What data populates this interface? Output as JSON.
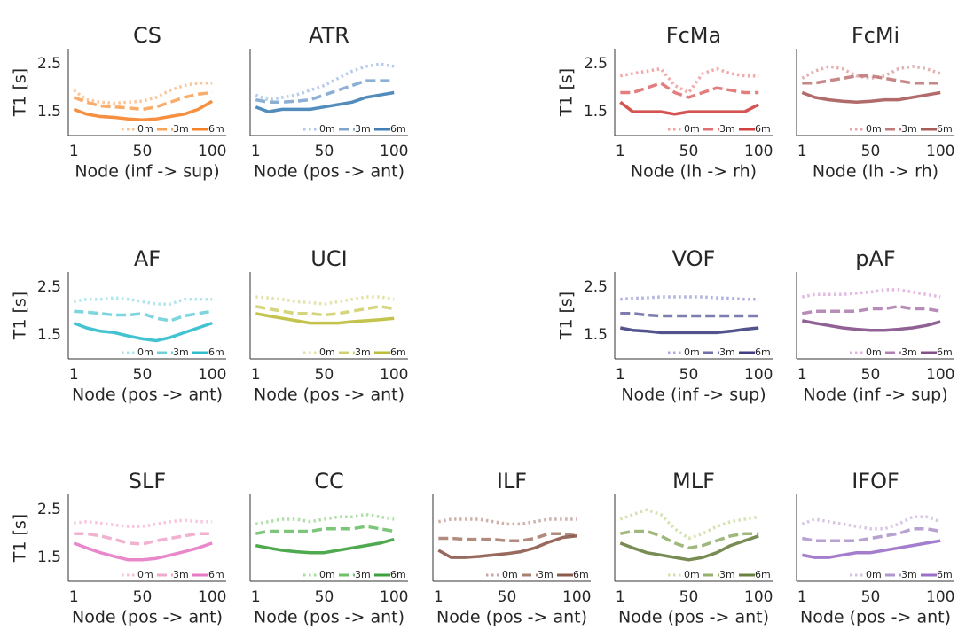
{
  "chart_data": [
    {
      "type": "line",
      "title": "CS",
      "xlabel": "Node (inf -> sup)",
      "ylabel": "T1 [s]",
      "x": [
        1,
        10,
        20,
        30,
        40,
        50,
        60,
        70,
        80,
        90,
        100
      ],
      "xlim": [
        -3,
        110
      ],
      "ylim": [
        1.0,
        2.82
      ],
      "xticks": [
        1,
        50,
        100
      ],
      "yticks": [
        1.5,
        2.5
      ],
      "legend": "lower right",
      "series": [
        {
          "name": "0m",
          "color": "#fdbf8a",
          "linestyle": "dotted",
          "values": [
            1.95,
            1.75,
            1.7,
            1.68,
            1.7,
            1.72,
            1.8,
            1.95,
            2.05,
            2.1,
            2.1
          ]
        },
        {
          "name": "3m",
          "color": "#f9a35a",
          "linestyle": "dashed",
          "values": [
            1.8,
            1.7,
            1.62,
            1.6,
            1.58,
            1.55,
            1.6,
            1.7,
            1.8,
            1.87,
            1.9
          ]
        },
        {
          "name": "6m",
          "color": "#f5832a",
          "linestyle": "solid",
          "values": [
            1.55,
            1.45,
            1.4,
            1.38,
            1.35,
            1.33,
            1.35,
            1.4,
            1.45,
            1.55,
            1.72
          ]
        }
      ]
    },
    {
      "type": "line",
      "title": "ATR",
      "xlabel": "Node (pos -> ant)",
      "x": [
        1,
        10,
        20,
        30,
        40,
        50,
        60,
        70,
        80,
        90,
        100
      ],
      "xlim": [
        -3,
        110
      ],
      "ylim": [
        1.0,
        2.82
      ],
      "xticks": [
        1,
        50,
        100
      ],
      "legend": "lower right",
      "series": [
        {
          "name": "0m",
          "color": "#aec7e8",
          "linestyle": "dotted",
          "values": [
            1.85,
            1.75,
            1.8,
            1.85,
            1.95,
            2.05,
            2.2,
            2.35,
            2.45,
            2.5,
            2.45
          ]
        },
        {
          "name": "3m",
          "color": "#7fa6cf",
          "linestyle": "dashed",
          "values": [
            1.75,
            1.7,
            1.7,
            1.72,
            1.75,
            1.85,
            1.95,
            2.05,
            2.15,
            2.15,
            2.15
          ]
        },
        {
          "name": "6m",
          "color": "#3f7fb5",
          "linestyle": "solid",
          "values": [
            1.6,
            1.5,
            1.55,
            1.55,
            1.55,
            1.6,
            1.65,
            1.7,
            1.8,
            1.85,
            1.9
          ]
        }
      ]
    },
    {
      "type": "line",
      "title": "FcMa",
      "xlabel": "Node (lh -> rh)",
      "ylabel": "T1 [s]",
      "x": [
        1,
        10,
        20,
        30,
        40,
        50,
        60,
        70,
        80,
        90,
        100
      ],
      "xlim": [
        -3,
        110
      ],
      "ylim": [
        1.0,
        2.82
      ],
      "xticks": [
        1,
        50,
        100
      ],
      "yticks": [
        1.5,
        2.5
      ],
      "legend": "lower right",
      "series": [
        {
          "name": "0m",
          "color": "#f0a0a0",
          "linestyle": "dotted",
          "values": [
            2.25,
            2.3,
            2.35,
            2.4,
            2.05,
            1.9,
            2.3,
            2.4,
            2.3,
            2.25,
            2.25
          ]
        },
        {
          "name": "3m",
          "color": "#e07070",
          "linestyle": "dashed",
          "values": [
            1.9,
            1.9,
            2.0,
            2.1,
            1.9,
            1.8,
            1.9,
            2.0,
            1.95,
            1.9,
            1.9
          ]
        },
        {
          "name": "6m",
          "color": "#d0403f",
          "linestyle": "solid",
          "values": [
            1.7,
            1.5,
            1.5,
            1.5,
            1.45,
            1.5,
            1.5,
            1.5,
            1.5,
            1.5,
            1.65
          ]
        }
      ]
    },
    {
      "type": "line",
      "title": "FcMi",
      "xlabel": "Node (lh -> rh)",
      "x": [
        1,
        10,
        20,
        30,
        40,
        50,
        60,
        70,
        80,
        90,
        100
      ],
      "xlim": [
        -3,
        110
      ],
      "ylim": [
        1.0,
        2.82
      ],
      "xticks": [
        1,
        50,
        100
      ],
      "legend": "lower right",
      "series": [
        {
          "name": "0m",
          "color": "#e0a8a8",
          "linestyle": "dotted",
          "values": [
            2.2,
            2.35,
            2.45,
            2.4,
            2.25,
            2.2,
            2.25,
            2.4,
            2.45,
            2.4,
            2.3
          ]
        },
        {
          "name": "3m",
          "color": "#c07a7a",
          "linestyle": "dashed",
          "values": [
            2.1,
            2.1,
            2.15,
            2.2,
            2.25,
            2.25,
            2.2,
            2.15,
            2.1,
            2.1,
            2.1
          ]
        },
        {
          "name": "6m",
          "color": "#a85b5b",
          "linestyle": "solid",
          "values": [
            1.9,
            1.8,
            1.75,
            1.72,
            1.7,
            1.72,
            1.75,
            1.75,
            1.8,
            1.85,
            1.9
          ]
        }
      ]
    },
    {
      "type": "line",
      "title": "AF",
      "xlabel": "Node (pos -> ant)",
      "ylabel": "T1 [s]",
      "x": [
        1,
        10,
        20,
        30,
        40,
        50,
        60,
        70,
        80,
        90,
        100
      ],
      "xlim": [
        -3,
        110
      ],
      "ylim": [
        1.0,
        2.82
      ],
      "xticks": [
        1,
        50,
        100
      ],
      "yticks": [
        1.5,
        2.5
      ],
      "legend": "lower right",
      "series": [
        {
          "name": "0m",
          "color": "#a9e3ea",
          "linestyle": "dotted",
          "values": [
            2.2,
            2.25,
            2.25,
            2.28,
            2.25,
            2.2,
            2.15,
            2.15,
            2.25,
            2.25,
            2.25
          ]
        },
        {
          "name": "3m",
          "color": "#6fd0dc",
          "linestyle": "dashed",
          "values": [
            2.0,
            1.98,
            1.95,
            1.92,
            1.92,
            1.95,
            1.85,
            1.8,
            1.9,
            1.95,
            2.0
          ]
        },
        {
          "name": "6m",
          "color": "#2fbccc",
          "linestyle": "solid",
          "values": [
            1.75,
            1.65,
            1.58,
            1.55,
            1.48,
            1.42,
            1.38,
            1.45,
            1.55,
            1.65,
            1.75
          ]
        }
      ]
    },
    {
      "type": "line",
      "title": "UCI",
      "xlabel": "Node (pos -> ant)",
      "x": [
        1,
        10,
        20,
        30,
        40,
        50,
        60,
        70,
        80,
        90,
        100
      ],
      "xlim": [
        -3,
        110
      ],
      "ylim": [
        1.0,
        2.82
      ],
      "xticks": [
        1,
        50,
        100
      ],
      "legend": "lower right",
      "series": [
        {
          "name": "0m",
          "color": "#e0e0a0",
          "linestyle": "dotted",
          "values": [
            2.3,
            2.28,
            2.25,
            2.2,
            2.18,
            2.15,
            2.2,
            2.25,
            2.3,
            2.3,
            2.25
          ]
        },
        {
          "name": "3m",
          "color": "#d0d070",
          "linestyle": "dashed",
          "values": [
            2.1,
            2.05,
            2.0,
            1.95,
            1.95,
            1.92,
            1.95,
            2.0,
            2.05,
            2.1,
            2.05
          ]
        },
        {
          "name": "6m",
          "color": "#bcbd3a",
          "linestyle": "solid",
          "values": [
            1.95,
            1.9,
            1.85,
            1.8,
            1.75,
            1.75,
            1.75,
            1.78,
            1.8,
            1.82,
            1.85
          ]
        }
      ]
    },
    {
      "type": "line",
      "title": "VOF",
      "xlabel": "Node (inf -> sup)",
      "ylabel": "T1 [s]",
      "x": [
        1,
        10,
        20,
        30,
        40,
        50,
        60,
        70,
        80,
        90,
        100
      ],
      "xlim": [
        -3,
        110
      ],
      "ylim": [
        1.0,
        2.82
      ],
      "xticks": [
        1,
        50,
        100
      ],
      "yticks": [
        1.5,
        2.5
      ],
      "legend": "lower right",
      "series": [
        {
          "name": "0m",
          "color": "#a8a8dc",
          "linestyle": "dotted",
          "values": [
            2.25,
            2.27,
            2.28,
            2.3,
            2.3,
            2.3,
            2.3,
            2.28,
            2.27,
            2.25,
            2.25
          ]
        },
        {
          "name": "3m",
          "color": "#6f6fa8",
          "linestyle": "dashed",
          "values": [
            1.95,
            1.95,
            1.92,
            1.9,
            1.9,
            1.9,
            1.9,
            1.9,
            1.9,
            1.9,
            1.9
          ]
        },
        {
          "name": "6m",
          "color": "#3f3f80",
          "linestyle": "solid",
          "values": [
            1.65,
            1.6,
            1.58,
            1.55,
            1.55,
            1.55,
            1.55,
            1.55,
            1.58,
            1.62,
            1.65
          ]
        }
      ]
    },
    {
      "type": "line",
      "title": "pAF",
      "xlabel": "Node (inf -> sup)",
      "x": [
        1,
        10,
        20,
        30,
        40,
        50,
        60,
        70,
        80,
        90,
        100
      ],
      "xlim": [
        -3,
        110
      ],
      "ylim": [
        1.0,
        2.82
      ],
      "xticks": [
        1,
        50,
        100
      ],
      "legend": "lower right",
      "series": [
        {
          "name": "0m",
          "color": "#e0b0e0",
          "linestyle": "dotted",
          "values": [
            2.3,
            2.35,
            2.35,
            2.35,
            2.38,
            2.4,
            2.45,
            2.45,
            2.4,
            2.35,
            2.3
          ]
        },
        {
          "name": "3m",
          "color": "#b080b0",
          "linestyle": "dashed",
          "values": [
            1.95,
            2.0,
            2.0,
            2.0,
            2.0,
            2.05,
            2.05,
            2.1,
            2.05,
            2.05,
            2.0
          ]
        },
        {
          "name": "6m",
          "color": "#84508a",
          "linestyle": "solid",
          "values": [
            1.8,
            1.75,
            1.7,
            1.65,
            1.62,
            1.6,
            1.6,
            1.62,
            1.65,
            1.7,
            1.78
          ]
        }
      ]
    },
    {
      "type": "line",
      "title": "SLF",
      "xlabel": "Node (pos -> ant)",
      "ylabel": "T1 [s]",
      "x": [
        1,
        10,
        20,
        30,
        40,
        50,
        60,
        70,
        80,
        90,
        100
      ],
      "xlim": [
        -3,
        110
      ],
      "ylim": [
        1.0,
        2.82
      ],
      "xticks": [
        1,
        50,
        100
      ],
      "yticks": [
        1.5,
        2.5
      ],
      "legend": "lower right",
      "series": [
        {
          "name": "0m",
          "color": "#f7c0da",
          "linestyle": "dotted",
          "values": [
            2.22,
            2.25,
            2.22,
            2.18,
            2.15,
            2.15,
            2.2,
            2.25,
            2.28,
            2.25,
            2.25
          ]
        },
        {
          "name": "3m",
          "color": "#f0a8cc",
          "linestyle": "dashed",
          "values": [
            2.0,
            2.0,
            1.95,
            1.88,
            1.8,
            1.78,
            1.85,
            1.9,
            1.95,
            2.0,
            2.0
          ]
        },
        {
          "name": "6m",
          "color": "#e67ac4",
          "linestyle": "solid",
          "values": [
            1.8,
            1.7,
            1.6,
            1.52,
            1.45,
            1.45,
            1.48,
            1.55,
            1.62,
            1.7,
            1.8
          ]
        }
      ]
    },
    {
      "type": "line",
      "title": "CC",
      "xlabel": "Node (pos -> ant)",
      "x": [
        1,
        10,
        20,
        30,
        40,
        50,
        60,
        70,
        80,
        90,
        100
      ],
      "xlim": [
        -3,
        110
      ],
      "ylim": [
        1.0,
        2.82
      ],
      "xticks": [
        1,
        50,
        100
      ],
      "legend": "lower right",
      "series": [
        {
          "name": "0m",
          "color": "#a8dca0",
          "linestyle": "dotted",
          "values": [
            2.2,
            2.25,
            2.3,
            2.3,
            2.25,
            2.3,
            2.35,
            2.35,
            2.4,
            2.35,
            2.3
          ]
        },
        {
          "name": "3m",
          "color": "#6fc06a",
          "linestyle": "dashed",
          "values": [
            2.0,
            2.05,
            2.05,
            2.05,
            2.05,
            2.1,
            2.1,
            2.1,
            2.15,
            2.1,
            2.05
          ]
        },
        {
          "name": "6m",
          "color": "#3ca03c",
          "linestyle": "solid",
          "values": [
            1.75,
            1.7,
            1.65,
            1.62,
            1.6,
            1.6,
            1.65,
            1.7,
            1.75,
            1.8,
            1.88
          ]
        }
      ]
    },
    {
      "type": "line",
      "title": "ILF",
      "xlabel": "Node (pos -> ant)",
      "x": [
        1,
        10,
        20,
        30,
        40,
        50,
        60,
        70,
        80,
        90,
        100
      ],
      "xlim": [
        -3,
        110
      ],
      "ylim": [
        1.0,
        2.82
      ],
      "xticks": [
        1,
        50,
        100
      ],
      "legend": "lower right",
      "series": [
        {
          "name": "0m",
          "color": "#c9a8a0",
          "linestyle": "dotted",
          "values": [
            2.25,
            2.3,
            2.3,
            2.3,
            2.25,
            2.2,
            2.2,
            2.25,
            2.3,
            2.3,
            2.3
          ]
        },
        {
          "name": "3m",
          "color": "#a88070",
          "linestyle": "dashed",
          "values": [
            1.9,
            1.9,
            1.88,
            1.88,
            1.88,
            1.85,
            1.85,
            1.9,
            2.0,
            2.0,
            1.95
          ]
        },
        {
          "name": "6m",
          "color": "#8c5a4b",
          "linestyle": "solid",
          "values": [
            1.65,
            1.5,
            1.5,
            1.52,
            1.55,
            1.58,
            1.62,
            1.7,
            1.82,
            1.92,
            1.95
          ]
        }
      ]
    },
    {
      "type": "line",
      "title": "MLF",
      "xlabel": "Node (pos -> ant)",
      "x": [
        1,
        10,
        20,
        30,
        40,
        50,
        60,
        70,
        80,
        90,
        100
      ],
      "xlim": [
        -3,
        110
      ],
      "ylim": [
        1.0,
        2.82
      ],
      "xticks": [
        1,
        50,
        100
      ],
      "legend": "lower right",
      "series": [
        {
          "name": "0m",
          "color": "#cfe0a8",
          "linestyle": "dotted",
          "values": [
            2.3,
            2.4,
            2.5,
            2.4,
            2.1,
            1.9,
            2.0,
            2.15,
            2.25,
            2.3,
            2.35
          ]
        },
        {
          "name": "3m",
          "color": "#96b070",
          "linestyle": "dashed",
          "values": [
            2.0,
            2.05,
            2.05,
            1.95,
            1.8,
            1.7,
            1.75,
            1.85,
            1.95,
            2.0,
            2.0
          ]
        },
        {
          "name": "6m",
          "color": "#6a8040",
          "linestyle": "solid",
          "values": [
            1.8,
            1.7,
            1.6,
            1.55,
            1.5,
            1.45,
            1.5,
            1.6,
            1.75,
            1.85,
            1.95
          ]
        }
      ]
    },
    {
      "type": "line",
      "title": "IFOF",
      "xlabel": "Node (pos -> ant)",
      "x": [
        1,
        10,
        20,
        30,
        40,
        50,
        60,
        70,
        80,
        90,
        100
      ],
      "xlim": [
        -3,
        110
      ],
      "ylim": [
        1.0,
        2.82
      ],
      "xticks": [
        1,
        50,
        100
      ],
      "legend": "lower right",
      "series": [
        {
          "name": "0m",
          "color": "#d4c0e0",
          "linestyle": "dotted",
          "values": [
            2.2,
            2.3,
            2.25,
            2.2,
            2.15,
            2.1,
            2.1,
            2.2,
            2.35,
            2.35,
            2.25
          ]
        },
        {
          "name": "3m",
          "color": "#b098cc",
          "linestyle": "dashed",
          "values": [
            1.9,
            1.85,
            1.85,
            1.85,
            1.85,
            1.9,
            1.95,
            2.0,
            2.1,
            2.1,
            2.05
          ]
        },
        {
          "name": "6m",
          "color": "#9a70c8",
          "linestyle": "solid",
          "values": [
            1.55,
            1.5,
            1.5,
            1.55,
            1.6,
            1.6,
            1.65,
            1.7,
            1.75,
            1.8,
            1.85
          ]
        }
      ]
    }
  ]
}
